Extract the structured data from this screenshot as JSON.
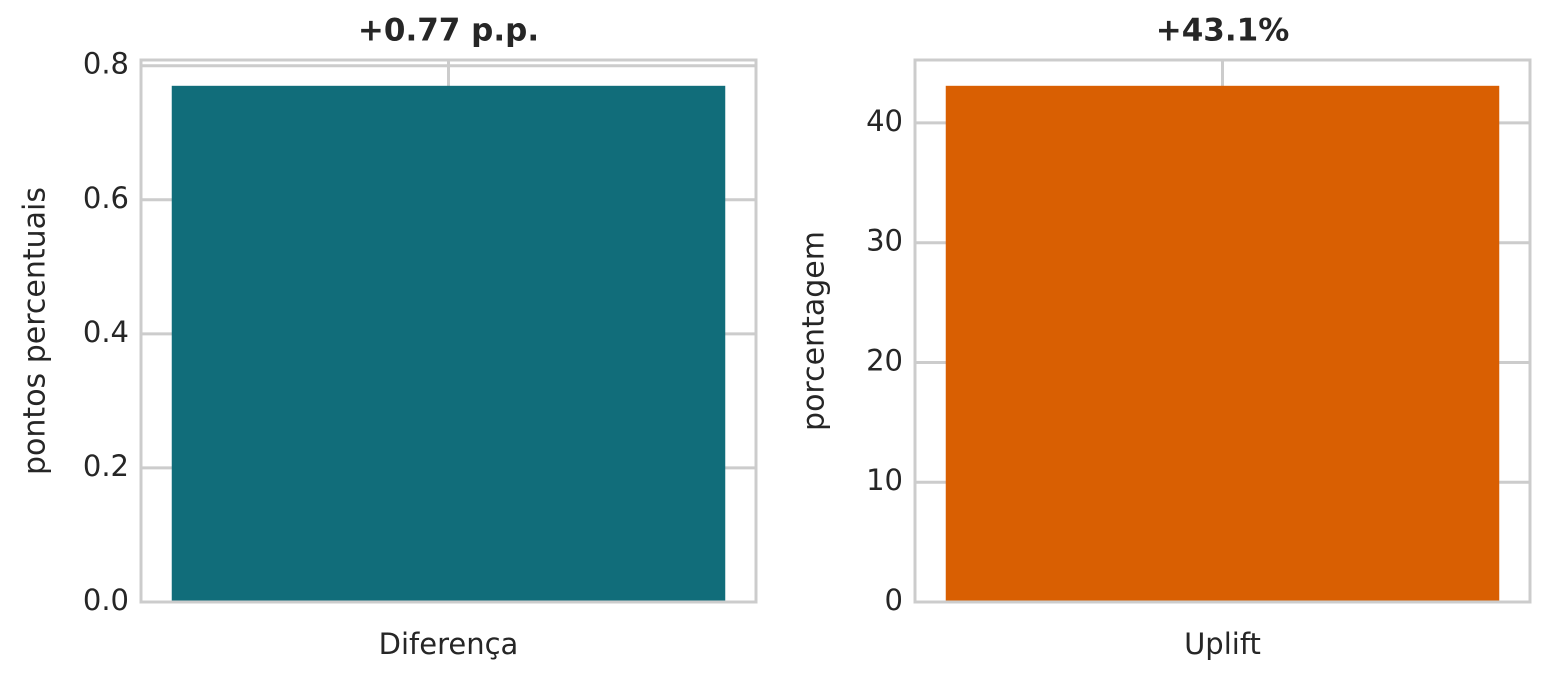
{
  "chart_data": [
    {
      "type": "bar",
      "title": "+0.77 p.p.",
      "ylabel": "pontos percentuais",
      "categories": [
        "Diferença"
      ],
      "values": [
        0.77
      ],
      "color": "#116d7a",
      "ylim": [
        0,
        0.8085
      ],
      "yticks": [
        {
          "value": 0,
          "label": "0.0"
        },
        0.2,
        0.4,
        0.6,
        0.8
      ],
      "grid": true
    },
    {
      "type": "bar",
      "title": "+43.1%",
      "ylabel": "porcentagem",
      "categories": [
        "Uplift"
      ],
      "values": [
        43.1
      ],
      "color": "#d95f02",
      "ylim": [
        0,
        45.255
      ],
      "yticks": [
        0,
        10,
        20,
        30,
        40
      ],
      "grid": true
    }
  ]
}
